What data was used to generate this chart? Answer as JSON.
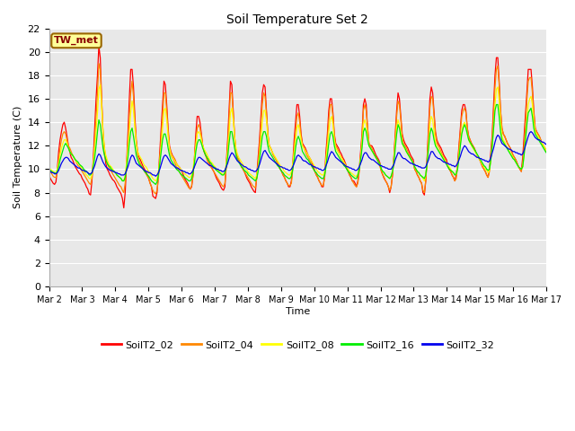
{
  "title": "Soil Temperature Set 2",
  "xlabel": "Time",
  "ylabel": "Soil Temperature (C)",
  "ylim": [
    0,
    22
  ],
  "yticks": [
    0,
    2,
    4,
    6,
    8,
    10,
    12,
    14,
    16,
    18,
    20,
    22
  ],
  "series_names": [
    "SoilT2_02",
    "SoilT2_04",
    "SoilT2_08",
    "SoilT2_16",
    "SoilT2_32"
  ],
  "series_colors": [
    "#ff0000",
    "#ff8800",
    "#ffff00",
    "#00ee00",
    "#0000ee"
  ],
  "annotation_text": "TW_met",
  "annotation_box_color": "#ffff99",
  "annotation_border_color": "#996600",
  "annotation_text_color": "#880000",
  "bg_color": "#ffffff",
  "plot_bg_color": "#e8e8e8",
  "grid_color": "#ffffff",
  "x_tick_labels": [
    "Mar 2",
    "Mar 3",
    "Mar 4",
    "Mar 5",
    "Mar 6",
    "Mar 7",
    "Mar 8",
    "Mar 9",
    "Mar 10",
    "Mar 11",
    "Mar 12",
    "Mar 13",
    "Mar 14",
    "Mar 15",
    "Mar 16",
    "Mar 17"
  ],
  "SoilT2_02": [
    9.5,
    9.2,
    9.0,
    8.8,
    8.7,
    8.9,
    10.0,
    11.5,
    12.5,
    13.2,
    13.8,
    14.0,
    13.5,
    12.8,
    12.0,
    11.5,
    11.0,
    10.8,
    10.5,
    10.2,
    10.0,
    9.8,
    9.6,
    9.5,
    9.2,
    9.0,
    8.8,
    8.5,
    8.3,
    7.9,
    7.8,
    9.0,
    11.0,
    13.5,
    16.0,
    18.0,
    20.5,
    19.5,
    16.0,
    13.0,
    11.5,
    10.5,
    10.0,
    9.8,
    9.5,
    9.3,
    9.1,
    9.0,
    8.8,
    8.5,
    8.3,
    8.1,
    7.9,
    7.5,
    6.7,
    8.0,
    10.5,
    13.0,
    16.0,
    18.5,
    18.5,
    17.0,
    14.5,
    12.5,
    11.5,
    11.0,
    10.8,
    10.5,
    10.2,
    10.0,
    9.8,
    9.5,
    9.2,
    8.8,
    8.5,
    7.7,
    7.6,
    7.5,
    8.0,
    9.5,
    11.5,
    13.5,
    15.5,
    17.5,
    17.2,
    15.5,
    13.5,
    12.0,
    11.5,
    11.2,
    11.0,
    10.8,
    10.5,
    10.3,
    10.2,
    10.0,
    9.8,
    9.5,
    9.2,
    9.0,
    8.8,
    8.5,
    8.3,
    8.5,
    9.5,
    11.0,
    13.0,
    14.5,
    14.5,
    14.0,
    13.0,
    12.0,
    11.5,
    11.2,
    11.0,
    10.8,
    10.5,
    10.2,
    10.0,
    9.8,
    9.5,
    9.2,
    9.0,
    8.8,
    8.5,
    8.3,
    8.2,
    8.5,
    10.5,
    12.5,
    15.0,
    17.5,
    17.2,
    15.0,
    12.8,
    11.5,
    11.0,
    10.8,
    10.5,
    10.2,
    10.0,
    9.8,
    9.5,
    9.2,
    9.0,
    8.8,
    8.5,
    8.3,
    8.1,
    8.0,
    9.5,
    11.0,
    12.5,
    14.5,
    16.5,
    17.2,
    17.0,
    15.0,
    13.0,
    12.0,
    11.8,
    11.5,
    11.2,
    11.0,
    10.8,
    10.5,
    10.2,
    10.0,
    9.8,
    9.5,
    9.3,
    9.0,
    8.8,
    8.5,
    8.5,
    9.0,
    10.5,
    12.5,
    14.0,
    15.5,
    15.5,
    14.5,
    13.0,
    12.2,
    12.0,
    11.8,
    11.5,
    11.2,
    11.0,
    10.8,
    10.5,
    10.2,
    9.8,
    9.5,
    9.3,
    9.0,
    8.8,
    8.5,
    8.5,
    9.5,
    11.5,
    13.0,
    15.0,
    16.0,
    16.0,
    14.8,
    13.0,
    12.2,
    12.0,
    11.8,
    11.5,
    11.3,
    11.0,
    10.8,
    10.5,
    10.2,
    9.8,
    9.5,
    9.3,
    9.0,
    9.0,
    8.8,
    8.5,
    9.0,
    10.0,
    11.5,
    13.0,
    15.5,
    16.0,
    15.5,
    13.5,
    12.2,
    12.0,
    12.0,
    11.8,
    11.5,
    11.2,
    11.0,
    10.8,
    10.5,
    9.8,
    9.5,
    9.2,
    9.0,
    8.8,
    8.5,
    8.0,
    8.5,
    9.5,
    11.0,
    13.0,
    15.0,
    16.5,
    16.0,
    14.5,
    13.0,
    12.5,
    12.2,
    12.0,
    11.8,
    11.5,
    11.2,
    11.0,
    10.8,
    10.0,
    9.8,
    9.5,
    9.3,
    9.0,
    8.8,
    8.0,
    7.8,
    9.0,
    11.0,
    13.5,
    16.0,
    17.0,
    16.5,
    14.8,
    13.2,
    12.5,
    12.2,
    12.0,
    11.8,
    11.5,
    11.2,
    11.0,
    10.8,
    10.2,
    10.0,
    9.8,
    9.5,
    9.3,
    9.0,
    9.5,
    10.5,
    12.0,
    13.5,
    15.0,
    15.5,
    15.5,
    15.0,
    13.5,
    12.8,
    12.5,
    12.2,
    12.0,
    11.8,
    11.5,
    11.2,
    11.0,
    10.8,
    10.5,
    10.2,
    10.0,
    9.8,
    9.5,
    9.3,
    10.0,
    11.5,
    13.0,
    15.5,
    18.0,
    19.5,
    19.5,
    17.5,
    15.0,
    13.5,
    13.0,
    12.8,
    12.5,
    12.2,
    12.0,
    11.8,
    11.5,
    11.2,
    11.0,
    10.8,
    10.5,
    10.2,
    10.0,
    9.8,
    11.0,
    12.8,
    14.5,
    16.5,
    18.5,
    18.5,
    18.5,
    17.0,
    15.0,
    13.5,
    13.2,
    13.0,
    12.8,
    12.5,
    12.2,
    12.0,
    11.8,
    11.5
  ],
  "SoilT2_04": [
    10.0,
    9.8,
    9.6,
    9.4,
    9.3,
    9.3,
    9.8,
    10.8,
    11.8,
    12.5,
    13.0,
    13.2,
    13.0,
    12.5,
    12.0,
    11.8,
    11.5,
    11.2,
    11.0,
    10.8,
    10.5,
    10.3,
    10.2,
    10.0,
    9.8,
    9.6,
    9.4,
    9.2,
    9.0,
    8.8,
    8.7,
    9.2,
    10.5,
    12.5,
    14.5,
    16.5,
    19.0,
    18.5,
    15.8,
    13.2,
    11.8,
    11.0,
    10.5,
    10.2,
    10.0,
    9.8,
    9.6,
    9.4,
    9.2,
    9.0,
    8.8,
    8.6,
    8.5,
    8.2,
    8.0,
    8.8,
    10.2,
    12.2,
    14.5,
    16.5,
    17.5,
    16.2,
    14.0,
    12.2,
    11.2,
    10.8,
    10.5,
    10.2,
    10.0,
    9.8,
    9.6,
    9.4,
    9.2,
    8.8,
    8.5,
    8.2,
    8.0,
    7.9,
    8.2,
    9.2,
    10.8,
    12.8,
    14.5,
    16.5,
    16.5,
    15.0,
    13.2,
    11.8,
    11.2,
    11.0,
    10.8,
    10.5,
    10.2,
    10.0,
    9.8,
    9.6,
    9.4,
    9.2,
    9.0,
    8.8,
    8.6,
    8.4,
    8.3,
    8.6,
    9.5,
    10.8,
    12.2,
    13.5,
    13.8,
    13.5,
    12.8,
    12.0,
    11.5,
    11.2,
    10.8,
    10.5,
    10.3,
    10.2,
    10.0,
    9.8,
    9.6,
    9.4,
    9.2,
    9.0,
    8.8,
    8.6,
    8.5,
    8.8,
    10.2,
    12.0,
    14.2,
    16.5,
    16.5,
    14.8,
    12.8,
    11.5,
    11.0,
    10.8,
    10.5,
    10.2,
    10.0,
    9.8,
    9.6,
    9.4,
    9.2,
    9.0,
    8.8,
    8.6,
    8.5,
    8.4,
    9.2,
    10.5,
    12.0,
    13.8,
    15.5,
    16.5,
    16.2,
    14.8,
    13.0,
    12.0,
    11.8,
    11.5,
    11.2,
    11.0,
    10.8,
    10.5,
    10.2,
    10.0,
    9.8,
    9.5,
    9.3,
    9.0,
    8.8,
    8.6,
    8.6,
    8.8,
    10.0,
    11.8,
    13.2,
    14.5,
    14.8,
    14.0,
    12.8,
    12.0,
    11.8,
    11.5,
    11.2,
    11.0,
    10.8,
    10.5,
    10.2,
    10.0,
    9.8,
    9.5,
    9.3,
    9.0,
    8.8,
    8.6,
    8.6,
    9.2,
    10.8,
    12.5,
    14.2,
    15.5,
    15.5,
    14.5,
    12.8,
    12.0,
    11.8,
    11.5,
    11.2,
    11.0,
    10.8,
    10.5,
    10.2,
    10.0,
    9.8,
    9.5,
    9.3,
    9.0,
    8.8,
    8.6,
    8.5,
    8.8,
    9.8,
    11.2,
    12.8,
    15.0,
    15.5,
    15.0,
    13.5,
    12.2,
    12.0,
    11.8,
    11.5,
    11.2,
    11.0,
    10.8,
    10.5,
    10.2,
    9.8,
    9.5,
    9.3,
    9.0,
    8.8,
    8.5,
    8.2,
    8.5,
    9.5,
    11.0,
    12.8,
    14.5,
    15.8,
    15.5,
    14.2,
    12.8,
    12.2,
    12.0,
    11.8,
    11.5,
    11.2,
    11.0,
    10.8,
    10.5,
    10.0,
    9.8,
    9.5,
    9.3,
    9.0,
    8.8,
    8.2,
    8.0,
    9.0,
    10.8,
    13.0,
    15.2,
    16.2,
    16.0,
    14.5,
    13.0,
    12.2,
    12.0,
    11.8,
    11.5,
    11.2,
    11.0,
    10.8,
    10.5,
    10.2,
    10.0,
    9.8,
    9.5,
    9.3,
    9.0,
    9.2,
    10.2,
    11.8,
    13.2,
    14.5,
    15.0,
    15.2,
    14.8,
    13.5,
    12.8,
    12.5,
    12.2,
    12.0,
    11.8,
    11.5,
    11.2,
    11.0,
    10.8,
    10.5,
    10.2,
    10.0,
    9.8,
    9.5,
    9.3,
    9.8,
    11.0,
    12.8,
    14.8,
    17.0,
    18.5,
    18.8,
    17.2,
    15.0,
    13.5,
    13.0,
    12.8,
    12.5,
    12.2,
    12.0,
    11.8,
    11.5,
    11.2,
    11.0,
    10.8,
    10.5,
    10.2,
    10.0,
    9.8,
    10.5,
    12.0,
    13.8,
    15.8,
    17.5,
    17.8,
    17.8,
    16.5,
    14.8,
    13.5,
    13.2,
    13.0,
    12.8,
    12.5,
    12.2,
    12.0,
    11.8,
    11.5
  ],
  "SoilT2_08": [
    10.2,
    10.0,
    9.9,
    9.8,
    9.7,
    9.7,
    10.0,
    10.5,
    11.2,
    11.8,
    12.2,
    12.5,
    12.5,
    12.2,
    11.8,
    11.5,
    11.3,
    11.2,
    11.0,
    10.8,
    10.6,
    10.5,
    10.4,
    10.2,
    10.0,
    9.8,
    9.7,
    9.5,
    9.4,
    9.2,
    9.2,
    9.5,
    10.5,
    11.8,
    13.2,
    14.8,
    16.8,
    17.2,
    15.2,
    13.2,
    11.8,
    11.2,
    10.8,
    10.5,
    10.3,
    10.2,
    10.0,
    9.8,
    9.7,
    9.5,
    9.4,
    9.3,
    9.2,
    9.0,
    9.0,
    9.5,
    10.5,
    11.8,
    13.2,
    14.8,
    15.8,
    15.0,
    13.5,
    12.2,
    11.5,
    11.2,
    11.0,
    10.8,
    10.5,
    10.3,
    10.2,
    10.0,
    9.8,
    9.6,
    9.4,
    9.2,
    9.1,
    9.0,
    9.2,
    9.8,
    10.8,
    12.0,
    13.5,
    15.0,
    15.2,
    14.2,
    12.8,
    11.8,
    11.3,
    11.1,
    10.9,
    10.7,
    10.5,
    10.3,
    10.2,
    10.0,
    9.9,
    9.7,
    9.6,
    9.5,
    9.4,
    9.3,
    9.3,
    9.5,
    10.0,
    11.0,
    12.0,
    13.0,
    13.2,
    13.0,
    12.5,
    12.0,
    11.7,
    11.5,
    11.3,
    11.0,
    10.8,
    10.6,
    10.5,
    10.3,
    10.2,
    10.0,
    9.9,
    9.8,
    9.7,
    9.6,
    9.5,
    9.8,
    10.5,
    11.5,
    13.0,
    14.8,
    15.2,
    14.2,
    12.8,
    11.8,
    11.3,
    11.0,
    10.8,
    10.6,
    10.4,
    10.2,
    10.0,
    9.9,
    9.7,
    9.6,
    9.5,
    9.4,
    9.3,
    9.2,
    9.5,
    10.2,
    11.2,
    12.5,
    14.0,
    15.0,
    15.0,
    14.2,
    12.8,
    12.0,
    11.8,
    11.5,
    11.3,
    11.1,
    10.9,
    10.7,
    10.5,
    10.3,
    10.2,
    10.0,
    9.8,
    9.7,
    9.6,
    9.5,
    9.5,
    9.8,
    10.5,
    11.5,
    12.5,
    13.5,
    13.8,
    13.2,
    12.5,
    12.0,
    11.8,
    11.6,
    11.4,
    11.2,
    11.0,
    10.8,
    10.6,
    10.4,
    10.2,
    10.0,
    9.8,
    9.7,
    9.6,
    9.5,
    9.5,
    9.8,
    10.8,
    12.0,
    13.2,
    14.2,
    14.5,
    13.8,
    12.5,
    11.8,
    11.6,
    11.4,
    11.2,
    11.0,
    10.8,
    10.6,
    10.4,
    10.2,
    10.0,
    9.8,
    9.7,
    9.6,
    9.5,
    9.4,
    9.4,
    9.6,
    10.2,
    11.0,
    12.2,
    13.8,
    14.2,
    13.8,
    12.8,
    12.0,
    11.8,
    11.6,
    11.4,
    11.2,
    11.0,
    10.8,
    10.6,
    10.4,
    10.0,
    9.8,
    9.7,
    9.5,
    9.4,
    9.3,
    9.2,
    9.4,
    9.8,
    10.8,
    12.2,
    13.5,
    14.2,
    13.8,
    13.0,
    12.2,
    11.9,
    11.7,
    11.5,
    11.3,
    11.1,
    10.9,
    10.7,
    10.5,
    10.2,
    10.0,
    9.8,
    9.7,
    9.5,
    9.4,
    9.2,
    9.0,
    9.5,
    10.5,
    12.0,
    13.8,
    14.5,
    14.2,
    13.2,
    12.2,
    11.9,
    11.7,
    11.5,
    11.3,
    11.1,
    10.9,
    10.7,
    10.5,
    10.3,
    10.2,
    10.0,
    9.8,
    9.7,
    9.5,
    9.6,
    10.2,
    11.2,
    12.2,
    13.2,
    13.8,
    14.0,
    13.7,
    13.0,
    12.5,
    12.2,
    12.0,
    11.8,
    11.6,
    11.4,
    11.2,
    11.0,
    10.8,
    10.6,
    10.4,
    10.2,
    10.0,
    9.9,
    9.7,
    9.9,
    10.8,
    12.0,
    13.5,
    15.5,
    16.8,
    17.0,
    15.8,
    14.0,
    12.8,
    12.5,
    12.3,
    12.0,
    11.8,
    11.6,
    11.4,
    11.2,
    11.0,
    10.8,
    10.6,
    10.4,
    10.2,
    10.1,
    10.0,
    10.2,
    11.2,
    12.5,
    14.0,
    15.5,
    16.0,
    16.2,
    15.5,
    14.0,
    13.2,
    13.0,
    12.8,
    12.6,
    12.4,
    12.2,
    12.0,
    11.8,
    11.6
  ],
  "SoilT2_16": [
    10.0,
    9.9,
    9.8,
    9.7,
    9.7,
    9.6,
    9.8,
    10.2,
    10.8,
    11.2,
    11.6,
    12.0,
    12.2,
    12.0,
    11.8,
    11.5,
    11.3,
    11.2,
    11.0,
    10.8,
    10.7,
    10.6,
    10.4,
    10.3,
    10.2,
    10.0,
    9.9,
    9.8,
    9.7,
    9.5,
    9.5,
    9.7,
    10.2,
    11.0,
    12.0,
    13.2,
    14.2,
    13.8,
    12.8,
    11.8,
    11.2,
    10.8,
    10.5,
    10.3,
    10.2,
    10.0,
    9.9,
    9.8,
    9.7,
    9.5,
    9.4,
    9.3,
    9.2,
    9.0,
    9.0,
    9.3,
    10.0,
    11.0,
    12.2,
    13.2,
    13.5,
    12.8,
    12.0,
    11.2,
    10.8,
    10.5,
    10.3,
    10.2,
    10.0,
    9.8,
    9.7,
    9.5,
    9.4,
    9.2,
    9.0,
    8.9,
    8.8,
    8.7,
    8.9,
    9.5,
    10.5,
    11.5,
    12.5,
    13.0,
    13.0,
    12.5,
    11.8,
    11.2,
    10.8,
    10.6,
    10.4,
    10.2,
    10.0,
    9.9,
    9.8,
    9.6,
    9.5,
    9.4,
    9.3,
    9.2,
    9.1,
    9.0,
    9.0,
    9.2,
    9.7,
    10.5,
    11.5,
    12.2,
    12.5,
    12.5,
    12.2,
    11.8,
    11.5,
    11.2,
    11.0,
    10.8,
    10.6,
    10.5,
    10.3,
    10.2,
    10.0,
    9.9,
    9.8,
    9.7,
    9.6,
    9.5,
    9.5,
    9.7,
    10.2,
    11.0,
    12.2,
    13.2,
    13.2,
    12.5,
    11.8,
    11.2,
    10.8,
    10.6,
    10.4,
    10.2,
    10.1,
    9.9,
    9.8,
    9.7,
    9.5,
    9.4,
    9.3,
    9.2,
    9.1,
    9.0,
    9.2,
    9.8,
    10.8,
    11.8,
    12.8,
    13.2,
    13.2,
    12.8,
    12.0,
    11.5,
    11.3,
    11.1,
    10.9,
    10.7,
    10.5,
    10.3,
    10.2,
    10.0,
    9.8,
    9.7,
    9.5,
    9.4,
    9.3,
    9.2,
    9.2,
    9.4,
    10.0,
    10.8,
    11.8,
    12.5,
    12.8,
    12.5,
    12.0,
    11.5,
    11.3,
    11.1,
    10.9,
    10.8,
    10.6,
    10.4,
    10.2,
    10.0,
    9.8,
    9.7,
    9.5,
    9.4,
    9.3,
    9.2,
    9.2,
    9.5,
    10.2,
    11.2,
    12.2,
    13.0,
    13.2,
    12.8,
    12.0,
    11.5,
    11.3,
    11.1,
    10.9,
    10.7,
    10.5,
    10.3,
    10.2,
    10.0,
    9.8,
    9.7,
    9.5,
    9.4,
    9.3,
    9.2,
    9.2,
    9.5,
    10.0,
    10.8,
    11.8,
    13.2,
    13.5,
    13.2,
    12.5,
    12.0,
    11.8,
    11.6,
    11.4,
    11.2,
    11.0,
    10.8,
    10.6,
    10.4,
    10.0,
    9.8,
    9.7,
    9.5,
    9.4,
    9.3,
    9.2,
    9.4,
    9.8,
    10.5,
    11.8,
    13.0,
    13.8,
    13.5,
    12.8,
    12.2,
    12.0,
    11.8,
    11.5,
    11.3,
    11.1,
    10.9,
    10.7,
    10.5,
    10.2,
    10.0,
    9.8,
    9.7,
    9.5,
    9.4,
    9.3,
    9.2,
    9.5,
    10.5,
    11.8,
    13.0,
    13.5,
    13.2,
    12.5,
    12.0,
    11.8,
    11.6,
    11.4,
    11.2,
    11.0,
    10.8,
    10.6,
    10.4,
    10.2,
    10.0,
    9.9,
    9.8,
    9.7,
    9.5,
    9.6,
    10.0,
    11.0,
    12.0,
    13.0,
    13.5,
    13.8,
    13.5,
    13.0,
    12.5,
    12.3,
    12.1,
    11.9,
    11.7,
    11.5,
    11.3,
    11.1,
    10.9,
    10.7,
    10.5,
    10.3,
    10.2,
    10.0,
    9.9,
    10.0,
    10.8,
    12.0,
    13.5,
    15.0,
    15.5,
    15.5,
    14.5,
    13.2,
    12.5,
    12.3,
    12.1,
    11.9,
    11.7,
    11.5,
    11.3,
    11.1,
    10.9,
    10.8,
    10.6,
    10.4,
    10.2,
    10.1,
    10.0,
    10.2,
    11.2,
    12.5,
    13.8,
    14.8,
    15.0,
    15.2,
    14.5,
    13.5,
    13.0,
    12.8,
    12.6,
    12.4,
    12.2,
    12.0,
    11.8,
    11.6,
    11.4
  ],
  "SoilT2_32": [
    9.8,
    9.8,
    9.7,
    9.7,
    9.6,
    9.6,
    9.7,
    9.9,
    10.2,
    10.5,
    10.7,
    10.9,
    11.0,
    11.0,
    10.9,
    10.7,
    10.6,
    10.5,
    10.4,
    10.3,
    10.2,
    10.1,
    10.1,
    10.0,
    9.9,
    9.9,
    9.8,
    9.8,
    9.7,
    9.6,
    9.6,
    9.7,
    10.0,
    10.3,
    10.7,
    11.1,
    11.3,
    11.2,
    10.9,
    10.6,
    10.4,
    10.2,
    10.1,
    10.0,
    9.9,
    9.9,
    9.8,
    9.8,
    9.7,
    9.7,
    9.6,
    9.6,
    9.5,
    9.5,
    9.5,
    9.6,
    9.9,
    10.2,
    10.6,
    11.0,
    11.2,
    11.1,
    10.8,
    10.5,
    10.4,
    10.3,
    10.2,
    10.1,
    10.0,
    9.9,
    9.8,
    9.8,
    9.7,
    9.7,
    9.6,
    9.5,
    9.5,
    9.4,
    9.5,
    9.7,
    10.0,
    10.4,
    10.8,
    11.1,
    11.2,
    11.1,
    10.9,
    10.7,
    10.5,
    10.4,
    10.3,
    10.2,
    10.1,
    10.1,
    10.0,
    9.9,
    9.9,
    9.8,
    9.8,
    9.7,
    9.7,
    9.6,
    9.6,
    9.7,
    9.9,
    10.2,
    10.5,
    10.8,
    11.0,
    11.0,
    10.9,
    10.8,
    10.7,
    10.6,
    10.5,
    10.4,
    10.3,
    10.3,
    10.2,
    10.1,
    10.1,
    10.0,
    10.0,
    9.9,
    9.9,
    9.8,
    9.8,
    9.9,
    10.2,
    10.5,
    10.9,
    11.2,
    11.4,
    11.3,
    11.1,
    10.9,
    10.7,
    10.6,
    10.5,
    10.4,
    10.3,
    10.2,
    10.2,
    10.1,
    10.0,
    10.0,
    9.9,
    9.9,
    9.8,
    9.8,
    9.9,
    10.1,
    10.4,
    10.8,
    11.2,
    11.5,
    11.6,
    11.4,
    11.2,
    11.0,
    10.9,
    10.8,
    10.7,
    10.6,
    10.5,
    10.4,
    10.3,
    10.2,
    10.2,
    10.1,
    10.1,
    10.0,
    10.0,
    9.9,
    9.9,
    10.0,
    10.2,
    10.5,
    10.8,
    11.1,
    11.2,
    11.1,
    11.0,
    10.8,
    10.7,
    10.7,
    10.6,
    10.5,
    10.4,
    10.4,
    10.3,
    10.2,
    10.2,
    10.1,
    10.1,
    10.0,
    10.0,
    9.9,
    9.9,
    10.0,
    10.3,
    10.6,
    11.0,
    11.3,
    11.5,
    11.4,
    11.2,
    11.0,
    10.9,
    10.8,
    10.7,
    10.6,
    10.5,
    10.4,
    10.3,
    10.2,
    10.2,
    10.1,
    10.1,
    10.0,
    10.0,
    9.9,
    9.9,
    10.0,
    10.2,
    10.5,
    10.8,
    11.2,
    11.4,
    11.4,
    11.2,
    11.0,
    10.9,
    10.8,
    10.8,
    10.7,
    10.6,
    10.5,
    10.4,
    10.3,
    10.3,
    10.2,
    10.2,
    10.1,
    10.1,
    10.0,
    10.0,
    10.0,
    10.2,
    10.4,
    10.8,
    11.1,
    11.4,
    11.4,
    11.2,
    11.0,
    10.9,
    10.9,
    10.8,
    10.7,
    10.6,
    10.5,
    10.5,
    10.4,
    10.4,
    10.3,
    10.3,
    10.2,
    10.2,
    10.1,
    10.1,
    10.1,
    10.2,
    10.5,
    10.8,
    11.2,
    11.5,
    11.5,
    11.3,
    11.1,
    11.0,
    10.9,
    10.9,
    10.8,
    10.7,
    10.6,
    10.6,
    10.5,
    10.5,
    10.4,
    10.4,
    10.3,
    10.3,
    10.2,
    10.3,
    10.5,
    10.8,
    11.1,
    11.5,
    11.8,
    12.0,
    11.9,
    11.7,
    11.5,
    11.4,
    11.3,
    11.3,
    11.2,
    11.1,
    11.0,
    11.0,
    10.9,
    10.9,
    10.8,
    10.8,
    10.7,
    10.7,
    10.6,
    10.7,
    11.0,
    11.4,
    11.8,
    12.3,
    12.7,
    12.9,
    12.8,
    12.5,
    12.2,
    12.1,
    12.0,
    11.9,
    11.8,
    11.7,
    11.7,
    11.6,
    11.5,
    11.5,
    11.4,
    11.4,
    11.3,
    11.3,
    11.2,
    11.3,
    11.6,
    12.0,
    12.4,
    12.8,
    13.1,
    13.2,
    13.1,
    12.9,
    12.7,
    12.6,
    12.5,
    12.5,
    12.4,
    12.3,
    12.3,
    12.2,
    12.1
  ]
}
